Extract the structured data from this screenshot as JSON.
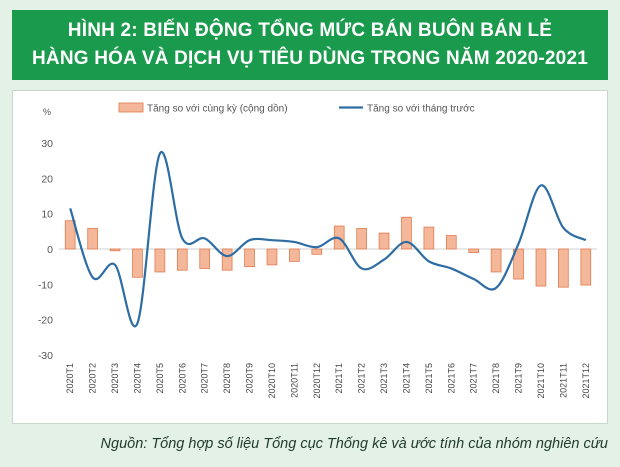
{
  "header": {
    "title_line1": "HÌNH 2: BIẾN ĐỘNG TỔNG MỨC BÁN BUÔN BÁN LẺ",
    "title_line2": "HÀNG HÓA VÀ DỊCH VỤ TIÊU DÙNG TRONG NĂM 2020-2021"
  },
  "source": "Nguồn: Tổng hợp số liệu Tổng cục Thống kê và ước tính của nhóm nghiên cứu",
  "colors": {
    "banner": "#1a9a4c",
    "bar_fill": "#f4b79a",
    "bar_stroke": "#e07b4e",
    "line": "#2e6da4"
  },
  "chart_data": {
    "type": "bar+line",
    "ylabel": "%",
    "ylim": [
      -30,
      30
    ],
    "y_ticks": [
      30,
      20,
      10,
      0,
      -10,
      -20,
      -30
    ],
    "grid": false,
    "legend_position": "top",
    "categories": [
      "2020T1",
      "2020T2",
      "2020T3",
      "2020T4",
      "2020T5",
      "2020T6",
      "2020T7",
      "2020T8",
      "2020T9",
      "2020T10",
      "2020T11",
      "2020T12",
      "2021T1",
      "2021T2",
      "2021T3",
      "2021T4",
      "2021T5",
      "2021T6",
      "2021T7",
      "2021T8",
      "2021T9",
      "2021T10",
      "2021T11",
      "2021T12"
    ],
    "series": [
      {
        "name": "Tăng so với cùng kỳ (cộng dồn)",
        "type": "bar",
        "values": [
          8,
          5.8,
          -0.5,
          -8,
          -6.5,
          -6,
          -5.5,
          -6,
          -5,
          -4.5,
          -3.5,
          -1.5,
          6.5,
          5.8,
          4.5,
          9,
          6.2,
          3.8,
          -1,
          -6.5,
          -8.5,
          -10.5,
          -10.8,
          -10.2
        ]
      },
      {
        "name": "Tăng so với tháng trước",
        "type": "line",
        "values": [
          11.5,
          -8,
          -4.5,
          -21,
          27,
          3,
          3,
          -2,
          2.5,
          2.5,
          2,
          0.5,
          3,
          -5.5,
          -3,
          2,
          -3.5,
          -5.5,
          -8.5,
          -11,
          1.5,
          18,
          6,
          2.5
        ]
      }
    ]
  }
}
